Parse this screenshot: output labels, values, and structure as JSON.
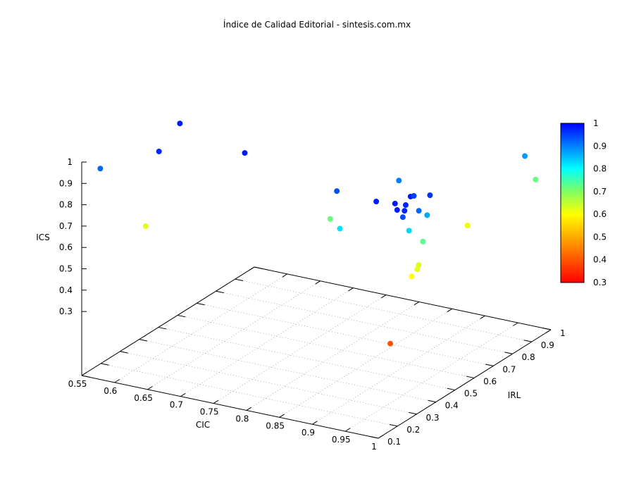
{
  "chart_data": {
    "type": "scatter",
    "title": "Índice de Calidad Editorial - sintesis.com.mx",
    "xlabel": "CIC",
    "ylabel": "IRL",
    "zlabel": "ICS",
    "xlim": [
      0.55,
      1
    ],
    "ylim": [
      0.1,
      1
    ],
    "zlim": [
      0.3,
      1
    ],
    "xticks": [
      "0.55",
      "0.6",
      "0.65",
      "0.7",
      "0.75",
      "0.8",
      "0.85",
      "0.9",
      "0.95",
      "1"
    ],
    "yticks": [
      "0.1",
      "0.2",
      "0.3",
      "0.4",
      "0.5",
      "0.6",
      "0.7",
      "0.8",
      "0.9",
      "1"
    ],
    "zticks": [
      "0.3",
      "0.4",
      "0.5",
      "0.6",
      "0.7",
      "0.8",
      "0.9",
      "1"
    ],
    "colorbar": {
      "range": [
        0.3,
        1
      ],
      "ticks": [
        "0.3",
        "0.4",
        "0.5",
        "0.6",
        "0.7",
        "0.8",
        "0.9",
        "1"
      ],
      "palette": [
        [
          "0.3",
          "#ff0000"
        ],
        [
          "0.45",
          "#ff8000"
        ],
        [
          "0.6",
          "#ffff00"
        ],
        [
          "0.7",
          "#80ff60"
        ],
        [
          "0.8",
          "#00ffff"
        ],
        [
          "0.9",
          "#0080ff"
        ],
        [
          "1",
          "#0000ff"
        ]
      ]
    },
    "grid": true,
    "points": [
      {
        "x": 0.584,
        "y": 0.495,
        "z": 0.98
      },
      {
        "x": 0.607,
        "y": 0.307,
        "z": 0.97
      },
      {
        "x": 0.711,
        "y": 0.397,
        "z": 0.98
      },
      {
        "x": 0.552,
        "y": 0.19,
        "z": 0.92
      },
      {
        "x": 0.592,
        "y": 0.289,
        "z": 0.62
      },
      {
        "x": 0.869,
        "y": 0.334,
        "z": 0.94
      },
      {
        "x": 0.948,
        "y": 0.268,
        "z": 0.98
      },
      {
        "x": 0.905,
        "y": 0.534,
        "z": 0.9
      },
      {
        "x": 0.973,
        "y": 0.28,
        "z": 0.98
      },
      {
        "x": 0.978,
        "y": 0.344,
        "z": 0.98
      },
      {
        "x": 0.969,
        "y": 0.392,
        "z": 0.95
      },
      {
        "x": 0.99,
        "y": 0.404,
        "z": 0.96
      },
      {
        "x": 0.984,
        "y": 0.298,
        "z": 0.97
      },
      {
        "x": 0.987,
        "y": 0.243,
        "z": 0.98
      },
      {
        "x": 0.993,
        "y": 0.261,
        "z": 0.97
      },
      {
        "x": 0.991,
        "y": 0.259,
        "z": 0.94
      },
      {
        "x": 0.99,
        "y": 0.346,
        "z": 0.92
      },
      {
        "x": 0.988,
        "y": 0.396,
        "z": 0.87
      },
      {
        "x": 0.827,
        "y": 0.444,
        "z": 0.72
      },
      {
        "x": 0.894,
        "y": 0.264,
        "z": 0.82
      },
      {
        "x": 0.98,
        "y": 0.329,
        "z": 0.83
      },
      {
        "x": 0.977,
        "y": 0.412,
        "z": 0.73
      },
      {
        "x": 0.976,
        "y": 0.393,
        "z": 0.63
      },
      {
        "x": 0.978,
        "y": 0.378,
        "z": 0.62
      },
      {
        "x": 0.977,
        "y": 0.353,
        "z": 0.6
      },
      {
        "x": 0.956,
        "y": 0.716,
        "z": 0.62
      },
      {
        "x": 0.996,
        "y": 0.878,
        "z": 0.88
      },
      {
        "x": 0.989,
        "y": 0.958,
        "z": 0.72
      },
      {
        "x": 0.997,
        "y": 0.173,
        "z": 0.4
      }
    ]
  }
}
